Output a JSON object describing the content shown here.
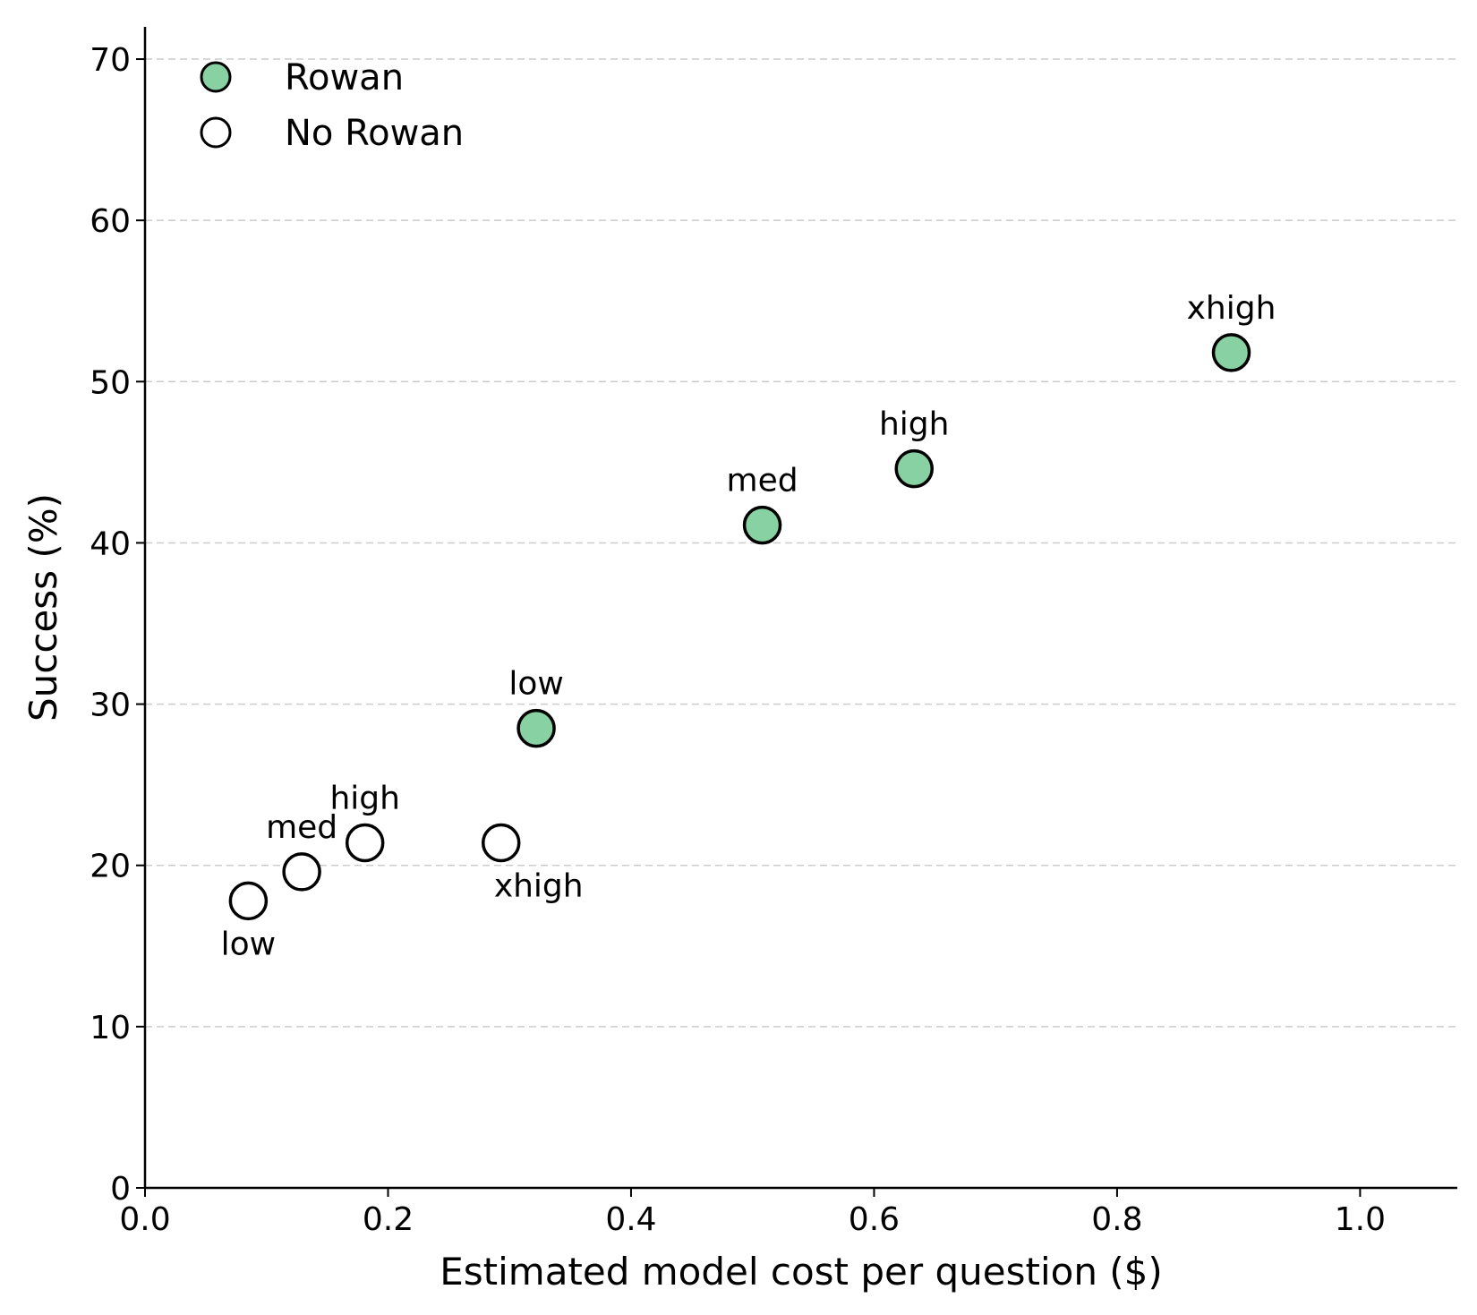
{
  "chart_data": {
    "type": "scatter",
    "xlabel": "Estimated model cost per question ($)",
    "ylabel": "Success (%)",
    "xlim": [
      0,
      1.08
    ],
    "ylim": [
      0,
      72
    ],
    "xticks": [
      "0.0",
      "0.2",
      "0.4",
      "0.6",
      "0.8",
      "1.0"
    ],
    "yticks": [
      "0",
      "10",
      "20",
      "30",
      "40",
      "50",
      "60",
      "70"
    ],
    "grid": "horizontal-dashed",
    "legend_position": "top-left",
    "series": [
      {
        "name": "Rowan",
        "fill": "#88d1a3",
        "points": [
          {
            "x": 0.322,
            "y": 28.5,
            "label": "low",
            "label_pos": "above"
          },
          {
            "x": 0.508,
            "y": 41.1,
            "label": "med",
            "label_pos": "above"
          },
          {
            "x": 0.633,
            "y": 44.6,
            "label": "high",
            "label_pos": "above"
          },
          {
            "x": 0.894,
            "y": 51.8,
            "label": "xhigh",
            "label_pos": "above"
          }
        ]
      },
      {
        "name": "No Rowan",
        "fill": "#ffffff",
        "points": [
          {
            "x": 0.085,
            "y": 17.8,
            "label": "low",
            "label_pos": "below"
          },
          {
            "x": 0.129,
            "y": 19.6,
            "label": "med",
            "label_pos": "above"
          },
          {
            "x": 0.181,
            "y": 21.4,
            "label": "high",
            "label_pos": "above"
          },
          {
            "x": 0.293,
            "y": 21.4,
            "label": "xhigh",
            "label_pos": "below-right"
          }
        ]
      }
    ]
  }
}
